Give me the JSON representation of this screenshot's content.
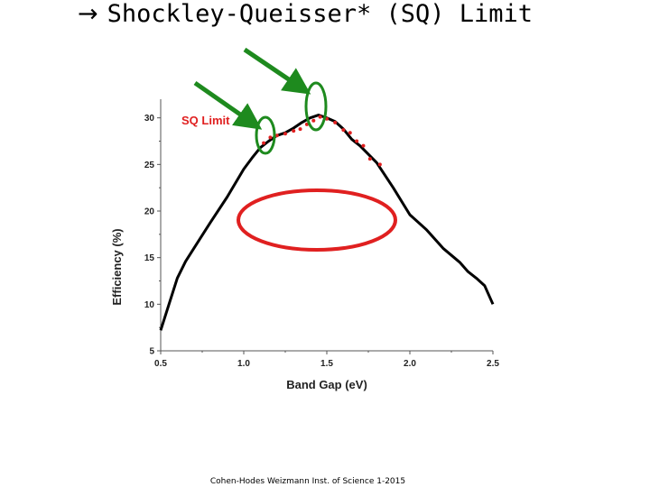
{
  "slide": {
    "title": "Shockley-Queisser* (SQ) Limit",
    "footer": "Cohen-Hodes Weizmann Inst. of Science 1-2015"
  },
  "colors": {
    "sq_curve": "#000000",
    "data_points": "#e02020",
    "annotation_arrows": "#1e8a1e",
    "highlight_ellipse": "#e02020"
  },
  "chart_data": {
    "type": "line",
    "xlabel": "Band Gap (eV)",
    "ylabel": "Efficiency (%)",
    "xlim": [
      0.5,
      2.5
    ],
    "ylim": [
      5,
      32
    ],
    "xticks": [
      0.5,
      1.0,
      1.5,
      2.0,
      2.5
    ],
    "yticks": [
      5,
      10,
      15,
      20,
      25,
      30
    ],
    "grid": false,
    "annotations": [
      "SQ Limit"
    ],
    "series": [
      {
        "name": "SQ Limit",
        "style": "line",
        "x": [
          0.5,
          0.55,
          0.6,
          0.65,
          0.7,
          0.8,
          0.9,
          1.0,
          1.05,
          1.1,
          1.15,
          1.2,
          1.25,
          1.3,
          1.35,
          1.4,
          1.45,
          1.5,
          1.55,
          1.6,
          1.65,
          1.7,
          1.8,
          1.9,
          2.0,
          2.1,
          2.2,
          2.3,
          2.35,
          2.4,
          2.45,
          2.5
        ],
        "y": [
          7.2,
          10,
          12.8,
          14.6,
          16,
          18.8,
          21.5,
          24.5,
          25.7,
          26.8,
          27.5,
          28.1,
          28.4,
          28.9,
          29.5,
          30,
          30.3,
          30,
          29.6,
          28.8,
          27.7,
          27,
          25.2,
          22.5,
          19.6,
          18,
          16,
          14.5,
          13.5,
          12.8,
          12,
          10
        ]
      },
      {
        "style": "scatter",
        "x": [
          1.12,
          1.16,
          1.2,
          1.25,
          1.3,
          1.34,
          1.38,
          1.42,
          1.46,
          1.5,
          1.55,
          1.6,
          1.64,
          1.68,
          1.72,
          1.76,
          1.82
        ],
        "y": [
          27.3,
          27.9,
          28.1,
          28.3,
          28.6,
          28.8,
          29.3,
          29.7,
          30.1,
          29.9,
          29.5,
          28.7,
          28.4,
          27.5,
          27.0,
          25.6,
          25.0
        ]
      }
    ]
  }
}
